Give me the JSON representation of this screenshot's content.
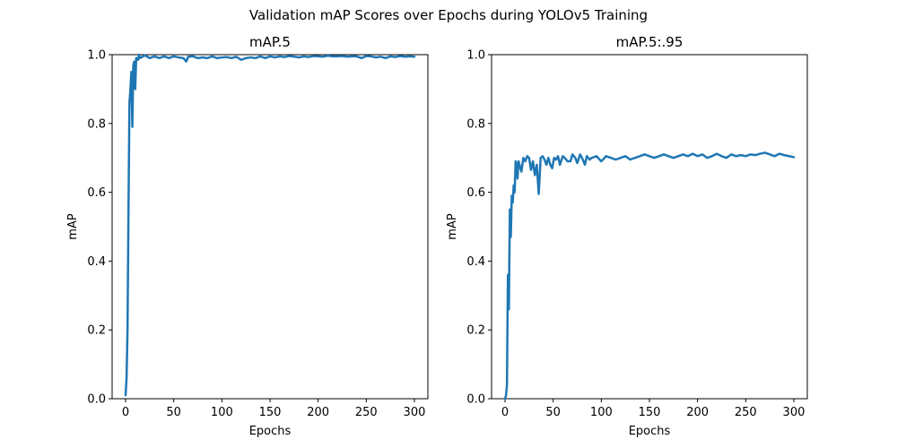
{
  "figure": {
    "title": "Validation mAP Scores over Epochs during YOLOv5 Training"
  },
  "chart_data": [
    {
      "type": "line",
      "title": "mAP.5",
      "xlabel": "Epochs",
      "ylabel": "mAP",
      "xlim": [
        -14,
        314
      ],
      "ylim": [
        0.0,
        1.0
      ],
      "xticks": [
        0,
        50,
        100,
        150,
        200,
        250,
        300
      ],
      "yticks": [
        0.0,
        0.2,
        0.4,
        0.6,
        0.8,
        1.0
      ],
      "xtick_labels": [
        "0",
        "50",
        "100",
        "150",
        "200",
        "250",
        "300"
      ],
      "ytick_labels": [
        "0.0",
        "0.2",
        "0.4",
        "0.6",
        "0.8",
        "1.0"
      ],
      "grid": false,
      "series": [
        {
          "color": "#1f77b4",
          "x": [
            0,
            1,
            2,
            3,
            4,
            5,
            6,
            7,
            8,
            9,
            10,
            11,
            12,
            13,
            14,
            15,
            20,
            25,
            30,
            35,
            40,
            45,
            50,
            55,
            60,
            63,
            65,
            70,
            75,
            80,
            85,
            90,
            95,
            100,
            105,
            110,
            115,
            120,
            125,
            130,
            135,
            140,
            145,
            150,
            155,
            160,
            165,
            170,
            175,
            180,
            185,
            190,
            195,
            200,
            205,
            210,
            215,
            220,
            225,
            230,
            235,
            240,
            245,
            250,
            255,
            260,
            265,
            270,
            275,
            280,
            285,
            290,
            295,
            300
          ],
          "y": [
            0.01,
            0.06,
            0.2,
            0.55,
            0.86,
            0.9,
            0.95,
            0.79,
            0.97,
            0.98,
            0.9,
            0.99,
            0.99,
            0.985,
            1.0,
            0.99,
            0.998,
            0.99,
            0.995,
            0.99,
            0.995,
            0.99,
            0.995,
            0.992,
            0.99,
            0.98,
            0.994,
            0.995,
            0.99,
            0.992,
            0.99,
            0.995,
            0.99,
            0.992,
            0.993,
            0.99,
            0.994,
            0.985,
            0.99,
            0.992,
            0.99,
            0.995,
            0.99,
            0.995,
            0.992,
            0.995,
            0.993,
            0.996,
            0.994,
            0.992,
            0.995,
            0.993,
            0.996,
            0.995,
            0.994,
            0.997,
            0.995,
            0.995,
            0.996,
            0.994,
            0.995,
            0.995,
            0.99,
            0.996,
            0.995,
            0.992,
            0.994,
            0.99,
            0.995,
            0.993,
            0.996,
            0.994,
            0.995,
            0.994
          ]
        }
      ]
    },
    {
      "type": "line",
      "title": "mAP.5:.95",
      "xlabel": "Epochs",
      "ylabel": "mAP",
      "xlim": [
        -14,
        314
      ],
      "ylim": [
        0.0,
        1.0
      ],
      "xticks": [
        0,
        50,
        100,
        150,
        200,
        250,
        300
      ],
      "yticks": [
        0.0,
        0.2,
        0.4,
        0.6,
        0.8,
        1.0
      ],
      "xtick_labels": [
        "0",
        "50",
        "100",
        "150",
        "200",
        "250",
        "300"
      ],
      "ytick_labels": [
        "0.0",
        "0.2",
        "0.4",
        "0.6",
        "0.8",
        "1.0"
      ],
      "grid": false,
      "series": [
        {
          "color": "#1f77b4",
          "x": [
            0,
            1,
            2,
            3,
            4,
            5,
            6,
            7,
            8,
            9,
            10,
            11,
            12,
            13,
            14,
            15,
            17,
            19,
            21,
            23,
            25,
            27,
            29,
            31,
            33,
            35,
            37,
            39,
            41,
            43,
            45,
            47,
            49,
            51,
            53,
            55,
            57,
            60,
            62,
            65,
            68,
            70,
            73,
            75,
            78,
            80,
            83,
            85,
            88,
            90,
            95,
            100,
            105,
            110,
            115,
            120,
            125,
            130,
            135,
            140,
            145,
            150,
            155,
            160,
            165,
            170,
            175,
            180,
            185,
            190,
            195,
            200,
            205,
            210,
            215,
            220,
            225,
            230,
            235,
            240,
            245,
            250,
            255,
            260,
            265,
            270,
            275,
            280,
            285,
            290,
            295,
            300
          ],
          "y": [
            0.0,
            0.01,
            0.04,
            0.36,
            0.26,
            0.55,
            0.47,
            0.59,
            0.57,
            0.62,
            0.6,
            0.69,
            0.68,
            0.64,
            0.69,
            0.68,
            0.66,
            0.7,
            0.69,
            0.705,
            0.7,
            0.665,
            0.69,
            0.65,
            0.68,
            0.595,
            0.7,
            0.705,
            0.695,
            0.68,
            0.7,
            0.68,
            0.67,
            0.7,
            0.695,
            0.705,
            0.68,
            0.705,
            0.7,
            0.69,
            0.69,
            0.71,
            0.7,
            0.685,
            0.71,
            0.7,
            0.68,
            0.705,
            0.695,
            0.7,
            0.705,
            0.69,
            0.705,
            0.7,
            0.695,
            0.7,
            0.705,
            0.695,
            0.7,
            0.705,
            0.71,
            0.705,
            0.7,
            0.705,
            0.71,
            0.705,
            0.7,
            0.705,
            0.71,
            0.705,
            0.712,
            0.705,
            0.71,
            0.7,
            0.705,
            0.712,
            0.705,
            0.7,
            0.71,
            0.705,
            0.708,
            0.705,
            0.71,
            0.708,
            0.712,
            0.715,
            0.71,
            0.705,
            0.712,
            0.708,
            0.705,
            0.702
          ]
        }
      ]
    }
  ]
}
